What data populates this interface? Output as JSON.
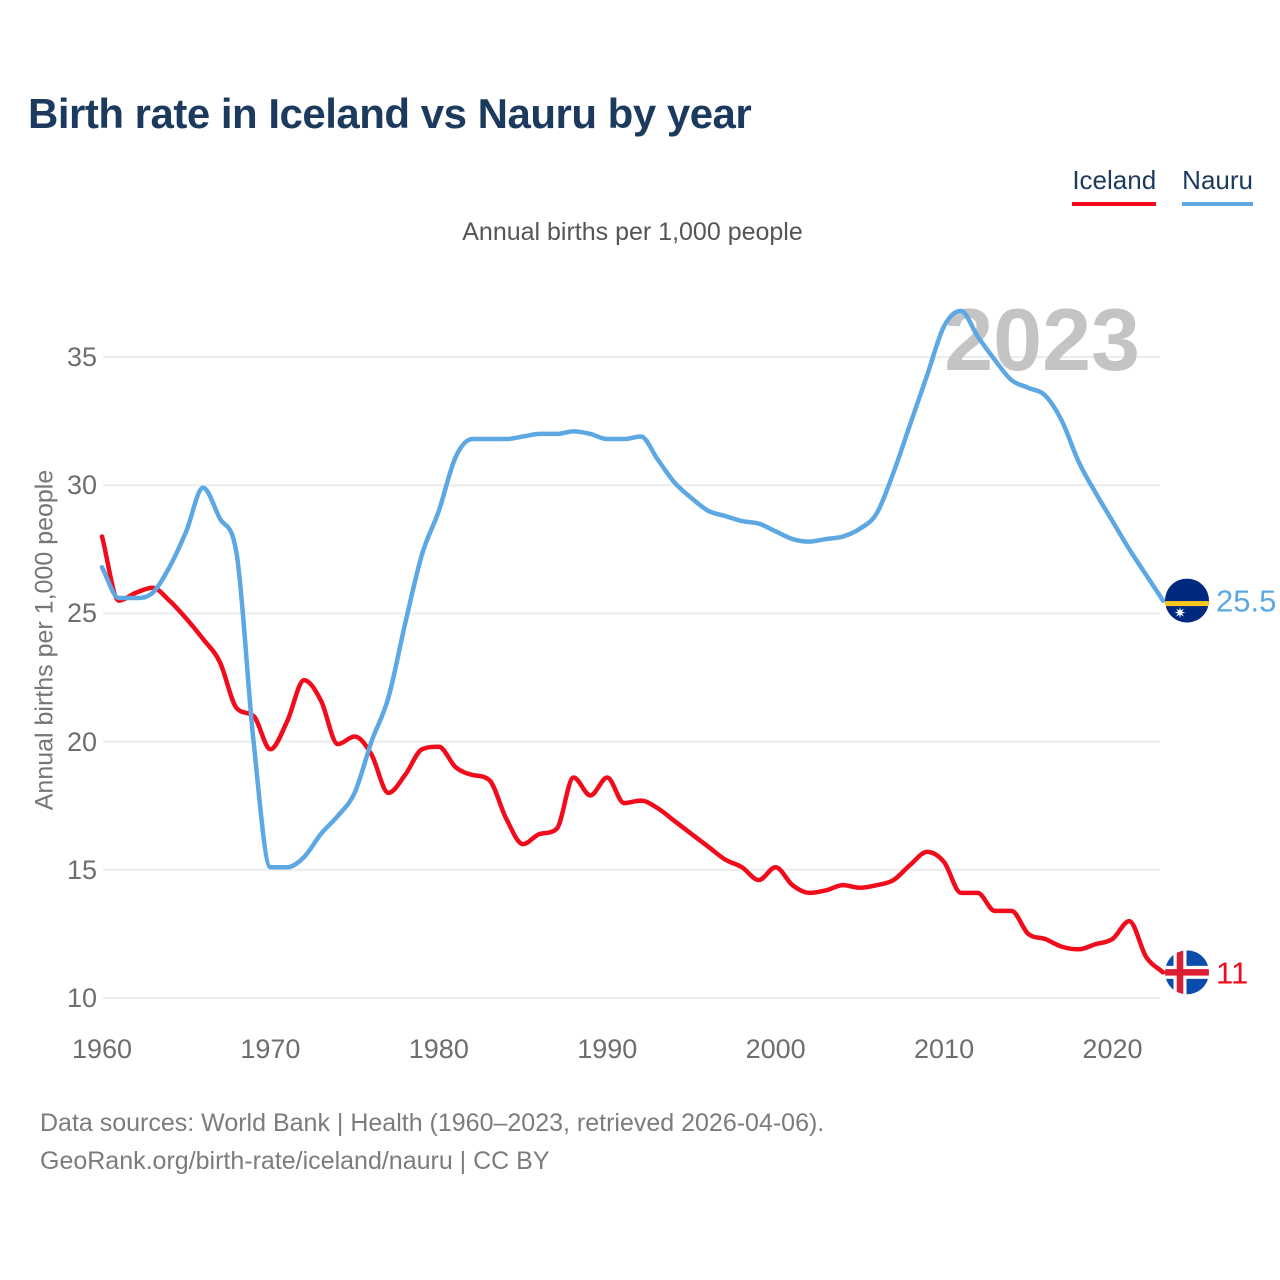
{
  "title": "Birth rate in Iceland vs Nauru by year",
  "subtitle": "Annual births per 1,000 people",
  "watermark": "2023",
  "legend": [
    {
      "label": "Iceland",
      "color": "#f20c1b"
    },
    {
      "label": "Nauru",
      "color": "#5da8e2"
    }
  ],
  "footer": {
    "line1": "Data sources: World Bank | Health (1960–2023, retrieved 2026-04-06).",
    "line2": "GeoRank.org/birth-rate/iceland/nauru | CC BY"
  },
  "colors": {
    "iceland": "#f20c1b",
    "nauru": "#5da8e2",
    "title_navy": "#1b3a5e",
    "gridline": "#ececec",
    "watermark_gray": "#c4c4c4",
    "tick_gray": "#6e6e6e"
  },
  "chart_data": {
    "type": "line",
    "title": "Birth rate in Iceland vs Nauru by year",
    "ylabel": "Annual births per 1,000 people",
    "xlabel": "",
    "grid": "horizontal",
    "legend_position": "top-right",
    "xticks": [
      1960,
      1970,
      1980,
      1990,
      2000,
      2010,
      2020
    ],
    "yticks": [
      10,
      15,
      20,
      25,
      30,
      35
    ],
    "xlim": [
      1960,
      2023
    ],
    "ylim": [
      10,
      35
    ],
    "x": [
      1960,
      1961,
      1962,
      1963,
      1964,
      1965,
      1966,
      1967,
      1968,
      1969,
      1970,
      1971,
      1972,
      1973,
      1974,
      1975,
      1976,
      1977,
      1978,
      1979,
      1980,
      1981,
      1982,
      1983,
      1984,
      1985,
      1986,
      1987,
      1988,
      1989,
      1990,
      1991,
      1992,
      1993,
      1994,
      1995,
      1996,
      1997,
      1998,
      1999,
      2000,
      2001,
      2002,
      2003,
      2004,
      2005,
      2006,
      2007,
      2008,
      2009,
      2010,
      2011,
      2012,
      2013,
      2014,
      2015,
      2016,
      2017,
      2018,
      2019,
      2020,
      2021,
      2022,
      2023
    ],
    "series": [
      {
        "name": "Iceland",
        "color": "#f20c1b",
        "end_label": "11",
        "values": [
          28.0,
          25.5,
          25.8,
          26.0,
          25.5,
          24.8,
          24.0,
          23.1,
          21.3,
          21.0,
          19.7,
          20.8,
          22.4,
          21.6,
          19.9,
          20.2,
          19.5,
          18.0,
          18.7,
          19.7,
          19.8,
          19.0,
          18.7,
          18.5,
          17.0,
          16.0,
          16.4,
          16.6,
          18.6,
          17.9,
          18.6,
          17.6,
          17.7,
          17.4,
          16.9,
          16.4,
          15.9,
          15.4,
          15.1,
          14.6,
          15.1,
          14.4,
          14.1,
          14.2,
          14.4,
          14.3,
          14.4,
          14.6,
          15.2,
          15.7,
          15.3,
          14.1,
          14.1,
          13.4,
          13.4,
          12.5,
          12.3,
          12.0,
          11.9,
          12.1,
          12.3,
          13.0,
          11.6,
          11.0
        ]
      },
      {
        "name": "Nauru",
        "color": "#5da8e2",
        "end_label": "25.5",
        "values": [
          26.8,
          25.6,
          25.6,
          25.8,
          26.8,
          28.2,
          29.9,
          28.7,
          27.3,
          20.0,
          15.1,
          15.1,
          15.5,
          16.4,
          17.1,
          18.0,
          20.0,
          21.7,
          24.6,
          27.3,
          29.0,
          31.1,
          31.8,
          31.8,
          31.8,
          31.9,
          32.0,
          32.0,
          32.1,
          32.0,
          31.8,
          31.8,
          31.9,
          31.0,
          30.1,
          29.5,
          29.0,
          28.8,
          28.6,
          28.5,
          28.2,
          27.9,
          27.8,
          27.9,
          28.0,
          28.3,
          28.9,
          30.5,
          32.4,
          34.3,
          36.2,
          36.8,
          35.8,
          34.9,
          34.1,
          33.8,
          33.5,
          32.5,
          30.9,
          29.7,
          28.6,
          27.5,
          26.5,
          25.5
        ]
      }
    ]
  }
}
